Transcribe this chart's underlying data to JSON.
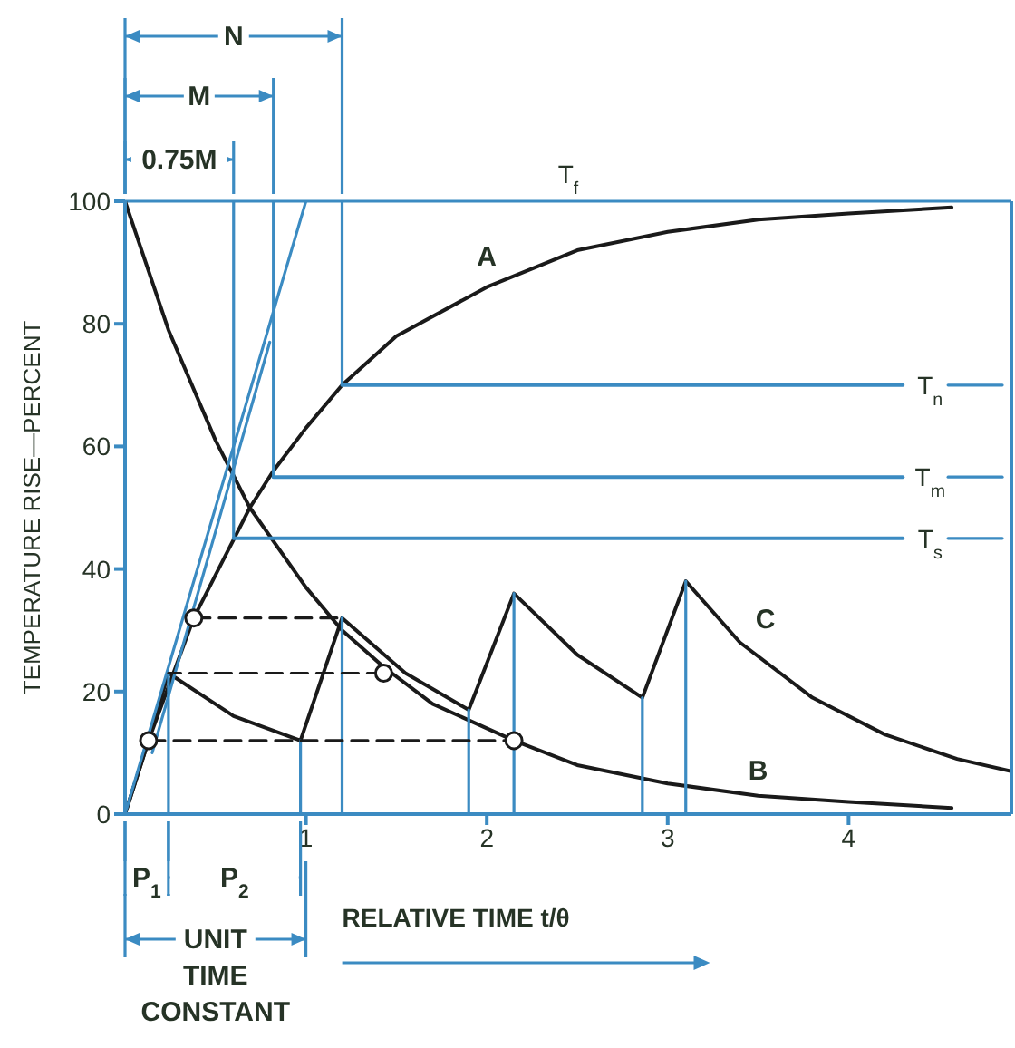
{
  "chart_data": {
    "type": "line",
    "xlabel": "RELATIVE TIME t/θ",
    "ylabel": "TEMPERATURE RISE—PERCENT",
    "xlim": [
      0,
      4.9
    ],
    "ylim": [
      0,
      100
    ],
    "xticks": [
      1,
      2,
      3,
      4
    ],
    "yticks": [
      0,
      20,
      40,
      60,
      80,
      100
    ],
    "series": [
      {
        "name": "A",
        "color": "#1a1a1a",
        "x": [
          0,
          0.13,
          0.38,
          0.5,
          0.69,
          0.82,
          1,
          1.2,
          1.5,
          2,
          2.5,
          3,
          3.5,
          4,
          4.57
        ],
        "values": [
          0,
          12,
          32,
          39,
          50,
          56,
          63,
          70,
          78,
          86,
          92,
          95,
          97,
          98,
          99
        ]
      },
      {
        "name": "B",
        "color": "#1a1a1a",
        "x": [
          0,
          0.24,
          0.5,
          0.69,
          1,
          1.2,
          1.43,
          1.7,
          2.15,
          2.5,
          3,
          3.5,
          4,
          4.57
        ],
        "values": [
          100,
          79,
          61,
          50,
          37,
          30,
          24,
          18,
          12,
          8,
          5,
          3,
          2,
          1
        ]
      },
      {
        "name": "C",
        "color": "#1a1a1a",
        "x": [
          0,
          0.13,
          0.24,
          0.6,
          0.97,
          1.2,
          1.55,
          1.9,
          2.15,
          2.5,
          2.86,
          3.1,
          3.4,
          3.8,
          4.2,
          4.6,
          4.9
        ],
        "values": [
          0,
          12,
          23,
          16,
          12,
          32,
          23,
          17,
          36,
          26,
          19,
          38,
          28,
          19,
          13,
          9,
          7
        ]
      },
      {
        "color": "#3b8bc2",
        "x": [
          0,
          1
        ],
        "values": [
          0,
          100
        ]
      },
      {
        "color": "#3b8bc2",
        "x": [
          0.15,
          0.8
        ],
        "values": [
          10,
          77
        ]
      },
      {
        "color": "#3b8bc2",
        "x": [
          0.24,
          0.24
        ],
        "values": [
          0,
          23
        ]
      },
      {
        "color": "#3b8bc2",
        "x": [
          0.6,
          0.6
        ],
        "values": [
          45,
          100
        ]
      },
      {
        "color": "#3b8bc2",
        "x": [
          0.82,
          0.82
        ],
        "values": [
          55,
          100
        ]
      },
      {
        "color": "#3b8bc2",
        "x": [
          1.2,
          1.2
        ],
        "values": [
          70,
          100
        ]
      },
      {
        "color": "#3b8bc2",
        "x": [
          0.97,
          0.97
        ],
        "values": [
          0,
          12
        ]
      },
      {
        "color": "#3b8bc2",
        "x": [
          1.2,
          1.2
        ],
        "values": [
          0,
          32
        ]
      },
      {
        "color": "#3b8bc2",
        "x": [
          1.9,
          1.9
        ],
        "values": [
          0,
          17
        ]
      },
      {
        "color": "#3b8bc2",
        "x": [
          2.15,
          2.15
        ],
        "values": [
          0,
          36
        ]
      },
      {
        "color": "#3b8bc2",
        "x": [
          2.86,
          2.86
        ],
        "values": [
          0,
          19
        ]
      },
      {
        "color": "#3b8bc2",
        "x": [
          3.1,
          3.1
        ],
        "values": [
          0,
          38
        ]
      },
      {
        "name": "T$_{n}$",
        "color": "#3b8bc2",
        "x": [
          1.2,
          4.3
        ],
        "values": [
          70,
          70
        ]
      },
      {
        "name": "T$_{m}$",
        "color": "#3b8bc2",
        "x": [
          0.82,
          4.3
        ],
        "values": [
          55,
          55
        ]
      },
      {
        "name": "T$_{s}$",
        "color": "#3b8bc2",
        "x": [
          0.6,
          4.3
        ],
        "values": [
          45,
          45
        ]
      },
      {
        "color": "#3b8bc2",
        "x": [
          4.55,
          4.85
        ],
        "values": [
          70,
          70
        ]
      },
      {
        "color": "#3b8bc2",
        "x": [
          4.55,
          4.85
        ],
        "values": [
          55,
          55
        ]
      },
      {
        "color": "#3b8bc2",
        "x": [
          4.55,
          4.85
        ],
        "values": [
          45,
          45
        ]
      },
      {
        "color": "#1a1a1a",
        "line_style": "dashed",
        "x": [
          0.38,
          1.2
        ],
        "values": [
          32,
          32
        ]
      },
      {
        "color": "#1a1a1a",
        "line_style": "dashed",
        "x": [
          1.43,
          0.24
        ],
        "values": [
          23,
          23
        ]
      },
      {
        "color": "#1a1a1a",
        "line_style": "dashed",
        "x": [
          0.13,
          2.15
        ],
        "values": [
          12,
          12
        ]
      },
      {
        "type": "scatter",
        "marker": "circle",
        "color": "#1a1a1a",
        "x": [
          0.13,
          0.38,
          1.43,
          2.15
        ],
        "values": [
          12,
          32,
          23,
          12
        ]
      }
    ],
    "ref_lines": [
      {
        "axis": "y",
        "value": 100,
        "label": "T$_{f}$",
        "color": "#3b8bc2"
      }
    ],
    "annotations": [
      "N",
      "M",
      "0.75M",
      "P$_{1}$",
      "P$_{2}$",
      "UNIT TIME CONSTANT"
    ]
  }
}
